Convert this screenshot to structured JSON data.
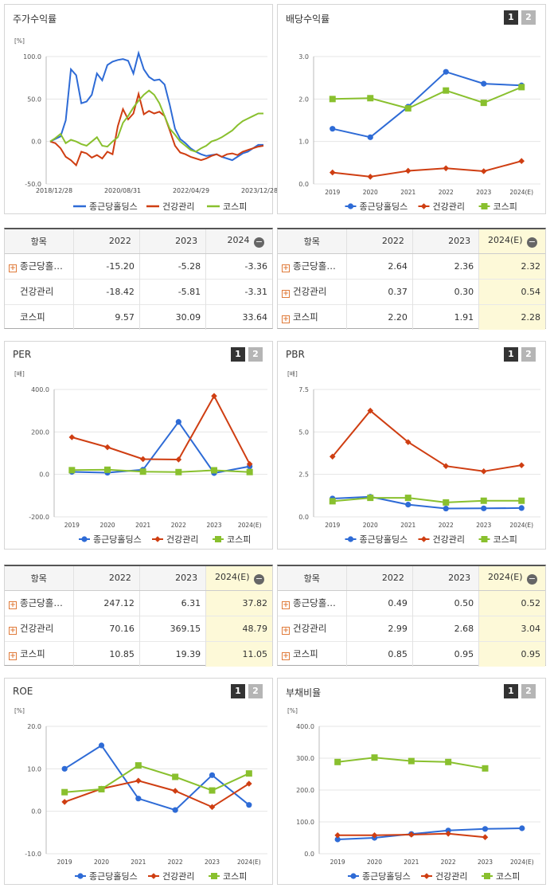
{
  "page_button": {
    "one": "1",
    "two": "2"
  },
  "colors": {
    "company": "#2e6bd6",
    "peer": "#cf3e12",
    "kospi": "#89c02e"
  },
  "panels": {
    "stock": {
      "title": "주가수익률"
    },
    "dividend": {
      "title": "배당수익률"
    },
    "per": {
      "title": "PER"
    },
    "pbr": {
      "title": "PBR"
    },
    "roe": {
      "title": "ROE"
    },
    "debt": {
      "title": "부채비율"
    }
  },
  "tables": {
    "stock": {
      "head": [
        "항목",
        "2022",
        "2023",
        "2024"
      ],
      "rows": [
        {
          "name": "종근당홀…",
          "expand": true,
          "v": [
            "-15.20",
            "-5.28",
            "-3.36"
          ]
        },
        {
          "name": "건강관리",
          "expand": false,
          "v": [
            "-18.42",
            "-5.81",
            "-3.31"
          ]
        },
        {
          "name": "코스피",
          "expand": false,
          "v": [
            "9.57",
            "30.09",
            "33.64"
          ]
        }
      ]
    },
    "dividend": {
      "head": [
        "항목",
        "2022",
        "2023",
        "2024(E)"
      ],
      "rows": [
        {
          "name": "종근당홀…",
          "expand": true,
          "v": [
            "2.64",
            "2.36",
            "2.32"
          ]
        },
        {
          "name": "건강관리",
          "expand": true,
          "v": [
            "0.37",
            "0.30",
            "0.54"
          ]
        },
        {
          "name": "코스피",
          "expand": true,
          "v": [
            "2.20",
            "1.91",
            "2.28"
          ]
        }
      ]
    },
    "per": {
      "head": [
        "항목",
        "2022",
        "2023",
        "2024(E)"
      ],
      "rows": [
        {
          "name": "종근당홀…",
          "expand": true,
          "v": [
            "247.12",
            "6.31",
            "37.82"
          ]
        },
        {
          "name": "건강관리",
          "expand": true,
          "v": [
            "70.16",
            "369.15",
            "48.79"
          ]
        },
        {
          "name": "코스피",
          "expand": true,
          "v": [
            "10.85",
            "19.39",
            "11.05"
          ]
        }
      ]
    },
    "pbr": {
      "head": [
        "항목",
        "2022",
        "2023",
        "2024(E)"
      ],
      "rows": [
        {
          "name": "종근당홀…",
          "expand": true,
          "v": [
            "0.49",
            "0.50",
            "0.52"
          ]
        },
        {
          "name": "건강관리",
          "expand": true,
          "v": [
            "2.99",
            "2.68",
            "3.04"
          ]
        },
        {
          "name": "코스피",
          "expand": true,
          "v": [
            "0.85",
            "0.95",
            "0.95"
          ]
        }
      ]
    }
  },
  "chart_data": [
    {
      "id": "stock",
      "type": "line",
      "unit": "[%]",
      "yticks": [
        "100.0",
        "50.0",
        "0.0",
        "-50.0"
      ],
      "ylim": [
        -50,
        100
      ],
      "xticks": [
        "2018/12/28",
        "2020/08/31",
        "2022/04/29",
        "2023/12/28"
      ],
      "series": [
        {
          "name": "종근당홀딩스",
          "values": [
            0,
            3,
            6,
            25,
            85,
            78,
            45,
            47,
            55,
            80,
            72,
            90,
            94,
            96,
            97,
            95,
            80,
            104,
            85,
            76,
            72,
            73,
            67,
            43,
            15,
            3,
            -2,
            -8,
            -12,
            -15,
            -17,
            -16,
            -15,
            -18,
            -20,
            -22,
            -18,
            -14,
            -12,
            -8,
            -4,
            -4
          ]
        },
        {
          "name": "건강관리",
          "values": [
            0,
            -2,
            -8,
            -18,
            -22,
            -28,
            -12,
            -14,
            -19,
            -16,
            -20,
            -12,
            -15,
            18,
            38,
            26,
            33,
            56,
            32,
            36,
            33,
            35,
            30,
            13,
            -5,
            -13,
            -15,
            -18,
            -20,
            -22,
            -20,
            -17,
            -15,
            -18,
            -15,
            -14,
            -16,
            -12,
            -10,
            -8,
            -6,
            -5
          ]
        },
        {
          "name": "코스피",
          "values": [
            0,
            4,
            9,
            -2,
            2,
            0,
            -3,
            -5,
            0,
            5,
            -5,
            -6,
            0,
            5,
            22,
            30,
            40,
            48,
            55,
            60,
            55,
            45,
            30,
            15,
            8,
            0,
            -5,
            -10,
            -12,
            -8,
            -5,
            0,
            2,
            5,
            9,
            13,
            19,
            24,
            27,
            30,
            33,
            33
          ]
        }
      ]
    },
    {
      "id": "dividend",
      "type": "line",
      "unit": "",
      "yticks": [
        "3.0",
        "2.0",
        "1.0",
        "0.0"
      ],
      "ylim": [
        0,
        3
      ],
      "categories": [
        "2019",
        "2020",
        "2021",
        "2022",
        "2023",
        "2024(E)"
      ],
      "series": [
        {
          "name": "종근당홀딩스",
          "values": [
            1.3,
            1.1,
            1.82,
            2.64,
            2.36,
            2.32
          ]
        },
        {
          "name": "건강관리",
          "values": [
            0.27,
            0.17,
            0.31,
            0.37,
            0.3,
            0.54
          ]
        },
        {
          "name": "코스피",
          "values": [
            2.0,
            2.02,
            1.78,
            2.2,
            1.91,
            2.28
          ]
        }
      ]
    },
    {
      "id": "per",
      "type": "line",
      "unit": "[배]",
      "yticks": [
        "400.0",
        "200.0",
        "0.0",
        "-200.0"
      ],
      "ylim": [
        -200,
        400
      ],
      "categories": [
        "2019",
        "2020",
        "2021",
        "2022",
        "2023",
        "2024(E)"
      ],
      "series": [
        {
          "name": "종근당홀딩스",
          "values": [
            12,
            8,
            22,
            247.12,
            6.31,
            37.82
          ]
        },
        {
          "name": "건강관리",
          "values": [
            175,
            128,
            72,
            70.16,
            369.15,
            48.79
          ]
        },
        {
          "name": "코스피",
          "values": [
            20,
            22,
            13,
            10.85,
            19.39,
            11.05
          ]
        }
      ]
    },
    {
      "id": "pbr",
      "type": "line",
      "unit": "[배]",
      "yticks": [
        "7.5",
        "5.0",
        "2.5",
        "0.0"
      ],
      "ylim": [
        0,
        7.5
      ],
      "categories": [
        "2019",
        "2020",
        "2021",
        "2022",
        "2023",
        "2024(E)"
      ],
      "series": [
        {
          "name": "종근당홀딩스",
          "values": [
            1.08,
            1.18,
            0.72,
            0.49,
            0.5,
            0.52
          ]
        },
        {
          "name": "건강관리",
          "values": [
            3.55,
            6.25,
            4.4,
            2.99,
            2.68,
            3.04
          ]
        },
        {
          "name": "코스피",
          "values": [
            0.92,
            1.12,
            1.12,
            0.85,
            0.95,
            0.95
          ]
        }
      ]
    },
    {
      "id": "roe",
      "type": "line",
      "unit": "[%]",
      "yticks": [
        "20.0",
        "10.0",
        "0.0",
        "-10.0"
      ],
      "ylim": [
        -10,
        20
      ],
      "categories": [
        "2019",
        "2020",
        "2021",
        "2022",
        "2023",
        "2024(E)"
      ],
      "series": [
        {
          "name": "종근당홀딩스",
          "values": [
            10.0,
            15.5,
            3.0,
            0.3,
            8.5,
            1.5
          ]
        },
        {
          "name": "건강관리",
          "values": [
            2.2,
            5.3,
            7.2,
            4.8,
            1.0,
            6.5
          ]
        },
        {
          "name": "코스피",
          "values": [
            4.5,
            5.2,
            10.8,
            8.1,
            4.9,
            8.9
          ]
        }
      ]
    },
    {
      "id": "debt",
      "type": "line",
      "unit": "[%]",
      "yticks": [
        "400.0",
        "300.0",
        "200.0",
        "100.0",
        "0.0"
      ],
      "ylim": [
        0,
        400
      ],
      "categories": [
        "2019",
        "2020",
        "2021",
        "2022",
        "2023",
        "2024(E)"
      ],
      "series": [
        {
          "name": "종근당홀딩스",
          "values": [
            45,
            50,
            62,
            73,
            78,
            80
          ]
        },
        {
          "name": "건강관리",
          "values": [
            58,
            58,
            60,
            63,
            52,
            null
          ]
        },
        {
          "name": "코스피",
          "values": [
            288,
            302,
            291,
            288,
            268,
            null
          ]
        }
      ]
    }
  ]
}
